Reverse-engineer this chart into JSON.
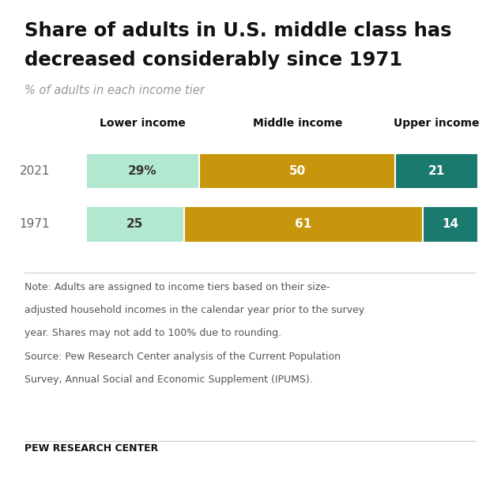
{
  "title_line1": "Share of adults in U.S. middle class has",
  "title_line2": "decreased considerably since 1971",
  "subtitle": "% of adults in each income tier",
  "years": [
    "2021",
    "1971"
  ],
  "col_header_labels": [
    "Lower income",
    "Middle income",
    "Upper income"
  ],
  "values": {
    "2021": [
      29,
      50,
      21
    ],
    "1971": [
      25,
      61,
      14
    ]
  },
  "bar_labels": {
    "2021": [
      "29%",
      "50",
      "21"
    ],
    "1971": [
      "25",
      "61",
      "14"
    ]
  },
  "colors": [
    "#b2e8d0",
    "#c8960c",
    "#1a7a6e"
  ],
  "background_color": "#ffffff",
  "title_color": "#111111",
  "subtitle_color": "#999999",
  "year_color": "#666666",
  "note_lines": [
    "Note: Adults are assigned to income tiers based on their size-",
    "adjusted household incomes in the calendar year prior to the survey",
    "year. Shares may not add to 100% due to rounding.",
    "Source: Pew Research Center analysis of the Current Population",
    "Survey, Annual Social and Economic Supplement (IPUMS)."
  ],
  "source_label": "PEW RESEARCH CENTER"
}
